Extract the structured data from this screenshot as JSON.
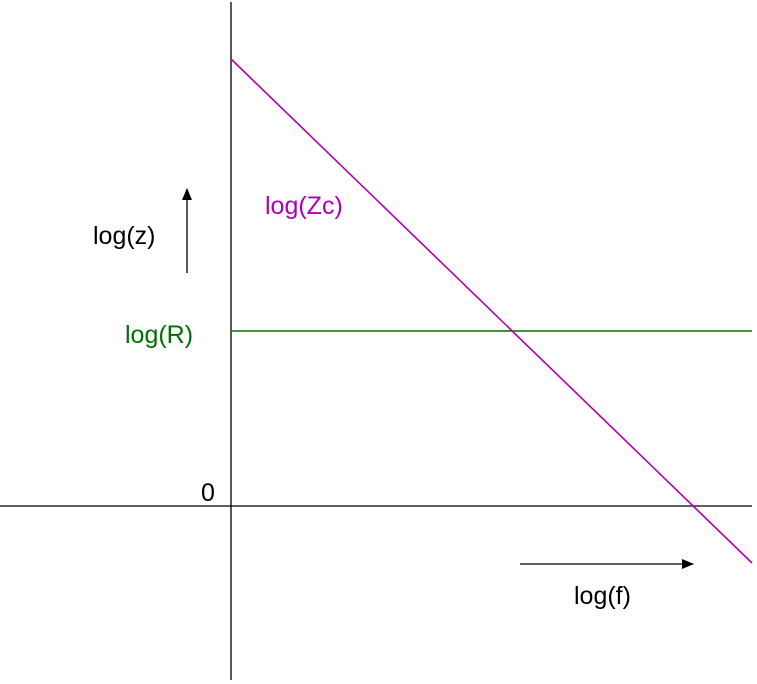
{
  "diagram": {
    "y_axis_label": "log(z)",
    "x_axis_label": "log(f)",
    "origin_label": "0",
    "resistance_label": "log(R)",
    "capacitor_label": "log(Zc)"
  },
  "colors": {
    "axis": "#000000",
    "resistance": "#007000",
    "capacitor": "#b000b0",
    "background": "#ffffff"
  }
}
